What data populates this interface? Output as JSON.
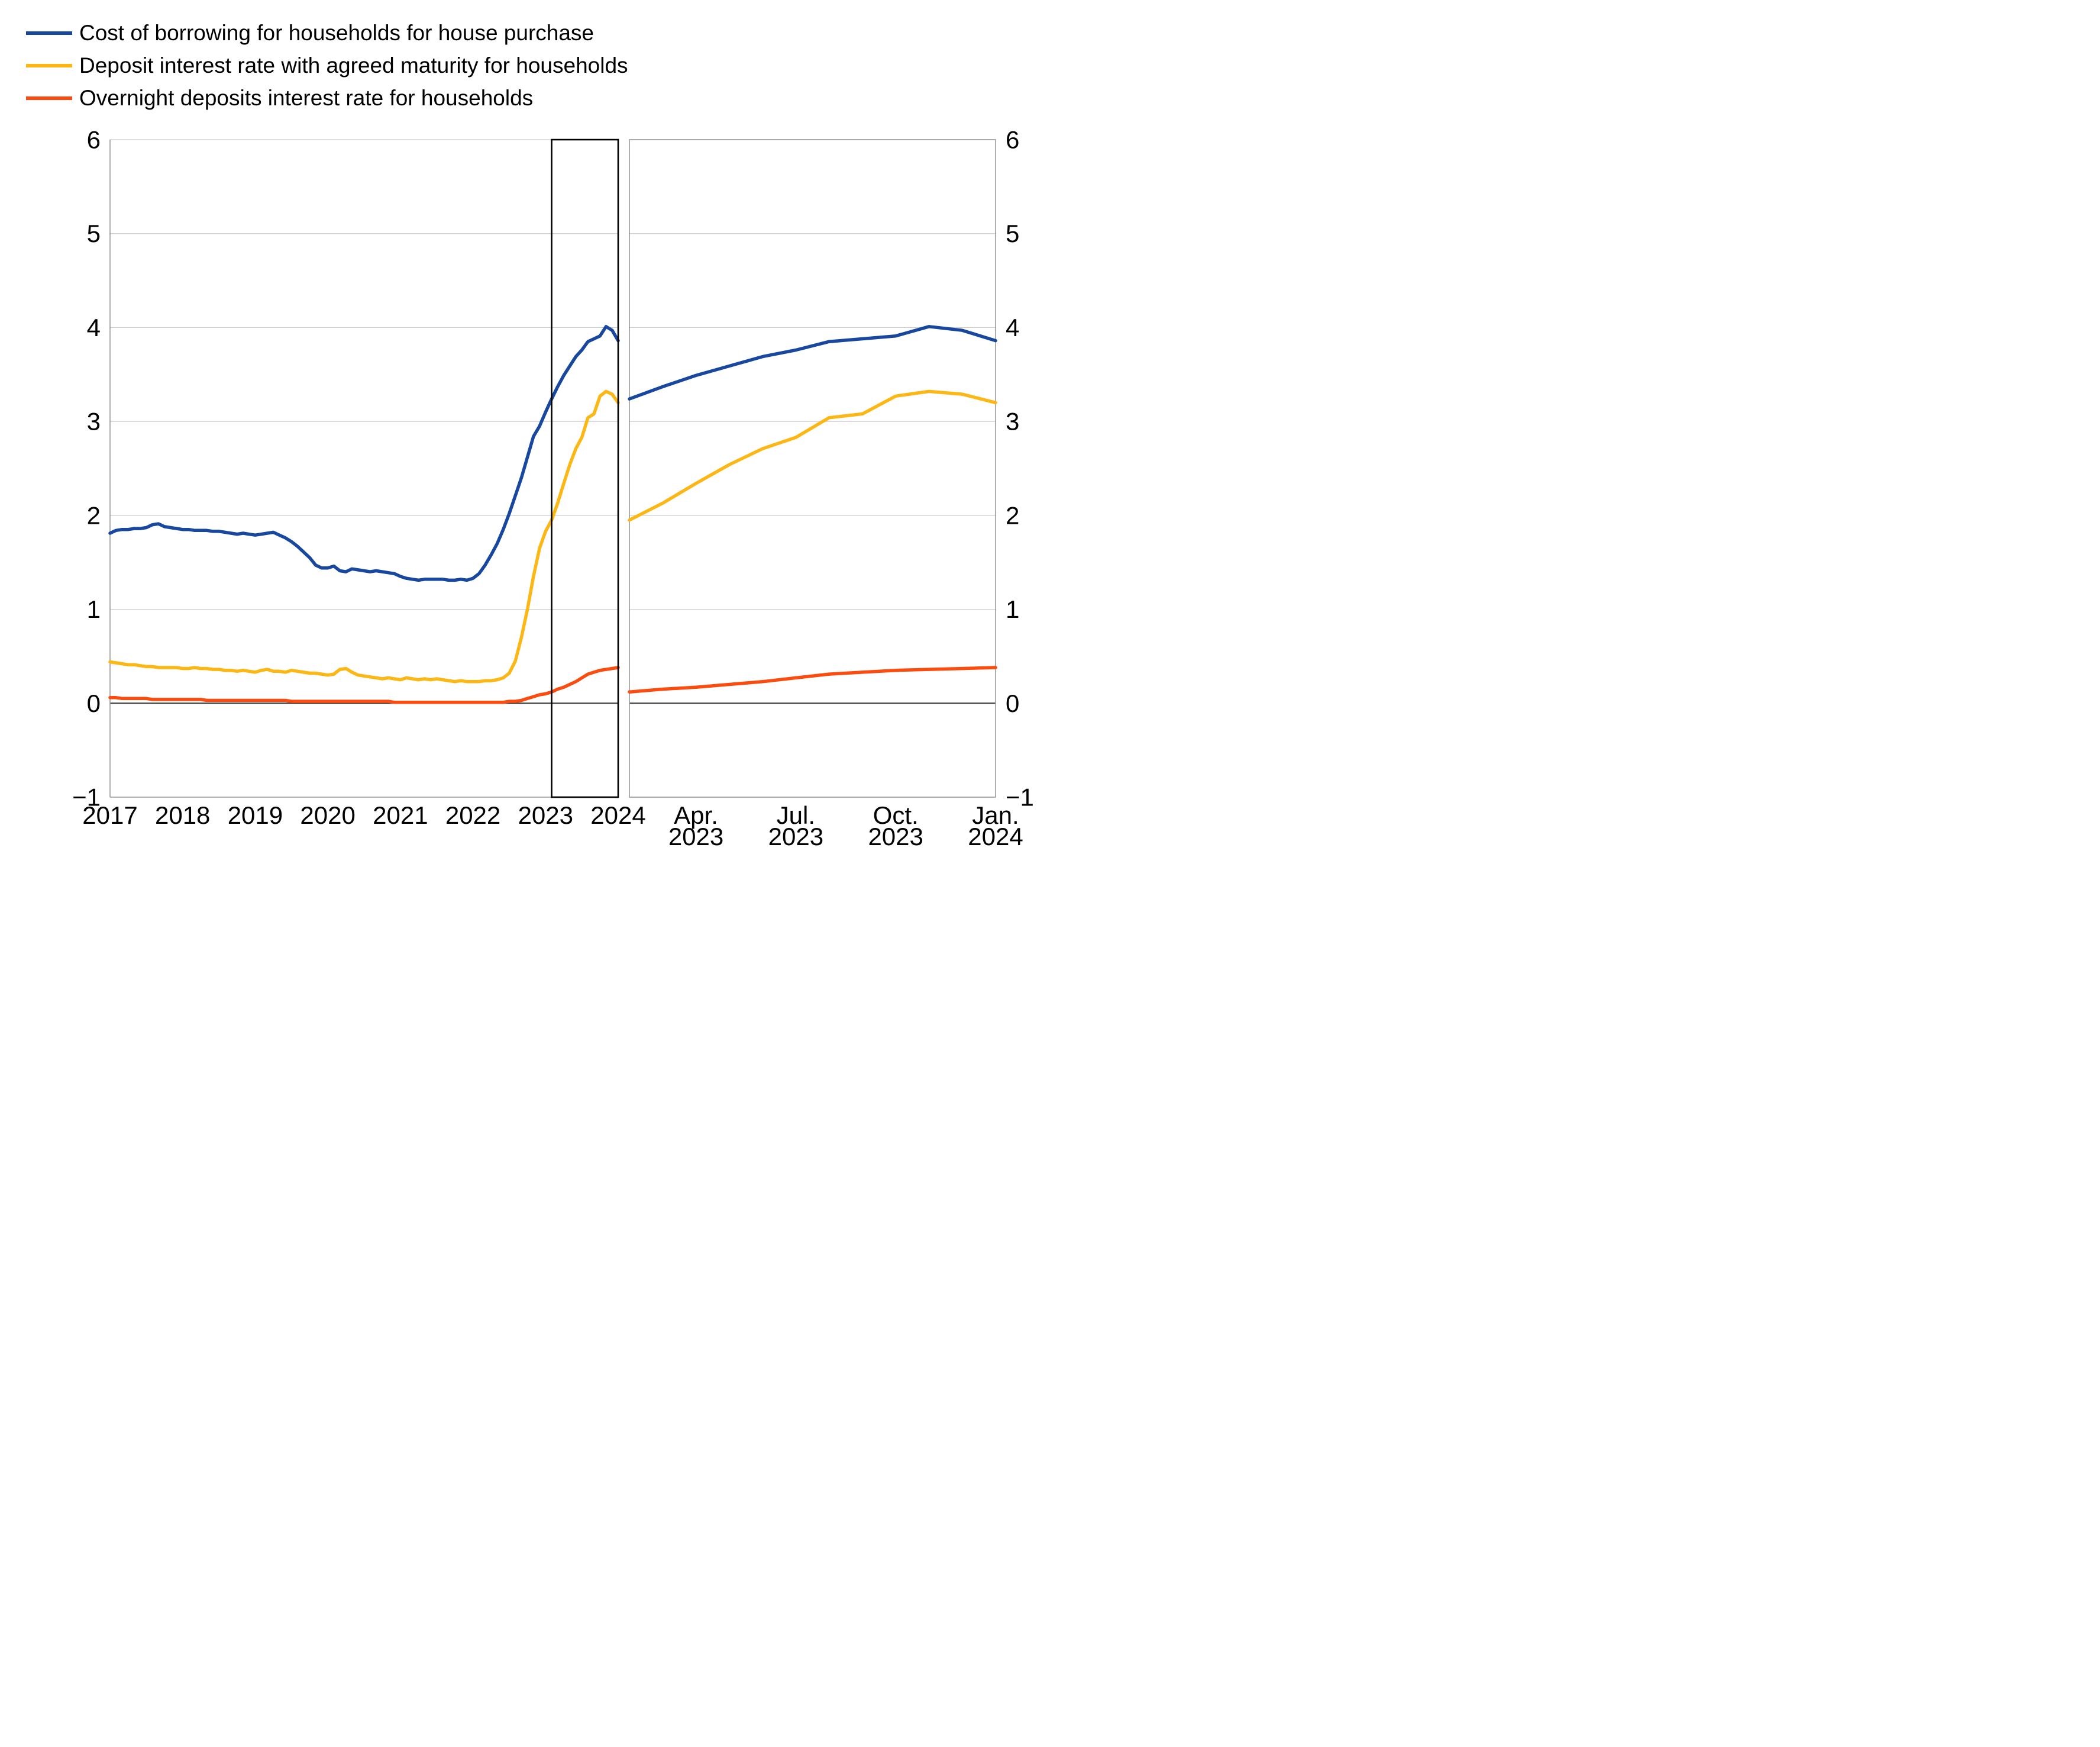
{
  "legend": {
    "items": [
      {
        "label": "Cost of borrowing for households for house purchase",
        "color": "#17479E"
      },
      {
        "label": "Deposit interest rate with agreed maturity for households",
        "color": "#FDB714"
      },
      {
        "label": "Overnight deposits interest rate for households",
        "color": "#FB4B0F"
      }
    ]
  },
  "colors": {
    "background": "#FFFFFF",
    "grid": "#CCCCCC",
    "frame": "#999999",
    "zero_line": "#333333",
    "highlight_box": "#000000",
    "text": "#000000"
  },
  "chart_data": [
    {
      "id": "full-history-panel",
      "type": "line",
      "x_unit": "month",
      "x_range": [
        "Jan 2017",
        "Jan 2024"
      ],
      "x_tick_labels": [
        "2017",
        "2018",
        "2019",
        "2020",
        "2021",
        "2022",
        "2023",
        "2024"
      ],
      "x_tick_month_indexes": [
        0,
        12,
        24,
        36,
        48,
        60,
        72,
        84
      ],
      "ylim": [
        -1,
        6
      ],
      "y_tick_values": [
        6,
        5,
        4,
        3,
        2,
        1,
        0,
        -1
      ],
      "y_tick_labels": [
        "6",
        "5",
        "4",
        "3",
        "2",
        "1",
        "0",
        "−1"
      ],
      "grid": "horizontal",
      "legend_position": "top-left",
      "highlight_box": {
        "start_month_index": 73,
        "end_month_index": 84
      },
      "series": [
        {
          "name": "Cost of borrowing for households for house purchase",
          "color": "#17479E",
          "values": [
            1.81,
            1.84,
            1.85,
            1.85,
            1.86,
            1.86,
            1.87,
            1.9,
            1.91,
            1.88,
            1.87,
            1.86,
            1.85,
            1.85,
            1.84,
            1.84,
            1.84,
            1.83,
            1.83,
            1.82,
            1.81,
            1.8,
            1.81,
            1.8,
            1.79,
            1.8,
            1.81,
            1.82,
            1.79,
            1.76,
            1.72,
            1.67,
            1.61,
            1.55,
            1.47,
            1.44,
            1.44,
            1.46,
            1.41,
            1.4,
            1.43,
            1.42,
            1.41,
            1.4,
            1.41,
            1.4,
            1.39,
            1.38,
            1.35,
            1.33,
            1.32,
            1.31,
            1.32,
            1.32,
            1.32,
            1.32,
            1.31,
            1.31,
            1.32,
            1.31,
            1.33,
            1.38,
            1.47,
            1.58,
            1.7,
            1.85,
            2.02,
            2.21,
            2.4,
            2.62,
            2.84,
            2.95,
            3.1,
            3.24,
            3.37,
            3.49,
            3.59,
            3.69,
            3.76,
            3.85,
            3.88,
            3.91,
            4.01,
            3.97,
            3.86
          ]
        },
        {
          "name": "Deposit interest rate with agreed maturity for households",
          "color": "#FDB714",
          "values": [
            0.44,
            0.43,
            0.42,
            0.41,
            0.41,
            0.4,
            0.39,
            0.39,
            0.38,
            0.38,
            0.38,
            0.38,
            0.37,
            0.37,
            0.38,
            0.37,
            0.37,
            0.36,
            0.36,
            0.35,
            0.35,
            0.34,
            0.35,
            0.34,
            0.33,
            0.35,
            0.36,
            0.34,
            0.34,
            0.33,
            0.35,
            0.34,
            0.33,
            0.32,
            0.32,
            0.31,
            0.3,
            0.31,
            0.36,
            0.37,
            0.33,
            0.3,
            0.29,
            0.28,
            0.27,
            0.26,
            0.27,
            0.26,
            0.25,
            0.27,
            0.26,
            0.25,
            0.26,
            0.25,
            0.26,
            0.25,
            0.24,
            0.23,
            0.24,
            0.23,
            0.23,
            0.23,
            0.24,
            0.24,
            0.25,
            0.27,
            0.32,
            0.45,
            0.7,
            1.0,
            1.35,
            1.65,
            1.83,
            1.95,
            2.13,
            2.34,
            2.54,
            2.71,
            2.83,
            3.04,
            3.08,
            3.27,
            3.32,
            3.29,
            3.2
          ]
        },
        {
          "name": "Overnight deposits interest rate for households",
          "color": "#FB4B0F",
          "values": [
            0.06,
            0.06,
            0.05,
            0.05,
            0.05,
            0.05,
            0.05,
            0.04,
            0.04,
            0.04,
            0.04,
            0.04,
            0.04,
            0.04,
            0.04,
            0.04,
            0.03,
            0.03,
            0.03,
            0.03,
            0.03,
            0.03,
            0.03,
            0.03,
            0.03,
            0.03,
            0.03,
            0.03,
            0.03,
            0.03,
            0.02,
            0.02,
            0.02,
            0.02,
            0.02,
            0.02,
            0.02,
            0.02,
            0.02,
            0.02,
            0.02,
            0.02,
            0.02,
            0.02,
            0.02,
            0.02,
            0.02,
            0.01,
            0.01,
            0.01,
            0.01,
            0.01,
            0.01,
            0.01,
            0.01,
            0.01,
            0.01,
            0.01,
            0.01,
            0.01,
            0.01,
            0.01,
            0.01,
            0.01,
            0.01,
            0.01,
            0.02,
            0.02,
            0.03,
            0.05,
            0.07,
            0.09,
            0.1,
            0.12,
            0.15,
            0.17,
            0.2,
            0.23,
            0.27,
            0.31,
            0.33,
            0.35,
            0.36,
            0.37,
            0.38
          ]
        }
      ]
    },
    {
      "id": "zoom-2023-panel",
      "type": "line",
      "x_unit": "month",
      "x_range": [
        "Feb 2023",
        "Jan 2024"
      ],
      "x_ticks": [
        {
          "month_index": 2,
          "line1": "Apr.",
          "line2": "2023"
        },
        {
          "month_index": 5,
          "line1": "Jul.",
          "line2": "2023"
        },
        {
          "month_index": 8,
          "line1": "Oct.",
          "line2": "2023"
        },
        {
          "month_index": 11,
          "line1": "Jan.",
          "line2": "2024"
        }
      ],
      "ylim": [
        -1,
        6
      ],
      "y_tick_values": [
        6,
        5,
        4,
        3,
        2,
        1,
        0,
        -1
      ],
      "y_tick_labels": [
        "6",
        "5",
        "4",
        "3",
        "2",
        "1",
        "0",
        "−1"
      ],
      "grid": "horizontal",
      "series": [
        {
          "name": "Cost of borrowing for households for house purchase",
          "color": "#17479E",
          "values": [
            3.24,
            3.37,
            3.49,
            3.59,
            3.69,
            3.76,
            3.85,
            3.88,
            3.91,
            4.01,
            3.97,
            3.86
          ]
        },
        {
          "name": "Deposit interest rate with agreed maturity for households",
          "color": "#FDB714",
          "values": [
            1.95,
            2.13,
            2.34,
            2.54,
            2.71,
            2.83,
            3.04,
            3.08,
            3.27,
            3.32,
            3.29,
            3.2
          ]
        },
        {
          "name": "Overnight deposits interest rate for households",
          "color": "#FB4B0F",
          "values": [
            0.12,
            0.15,
            0.17,
            0.2,
            0.23,
            0.27,
            0.31,
            0.33,
            0.35,
            0.36,
            0.37,
            0.38
          ]
        }
      ]
    }
  ]
}
